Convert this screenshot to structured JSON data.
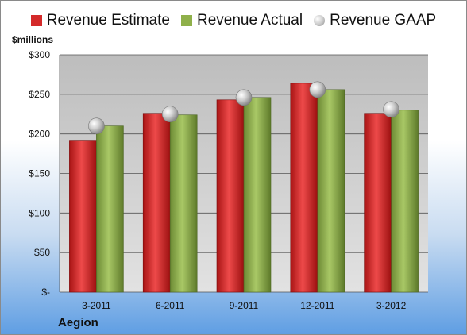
{
  "legend": [
    {
      "label": "Revenue Estimate",
      "color": "#d42a2a",
      "shape": "square"
    },
    {
      "label": "Revenue Actual",
      "color": "#8fb04a",
      "shape": "square"
    },
    {
      "label": "Revenue GAAP",
      "color": "#c8c8c8",
      "shape": "circle"
    }
  ],
  "unit_label": "$millions",
  "company": "Aegion",
  "chart_data": {
    "type": "bar",
    "categories": [
      "3-2011",
      "6-2011",
      "9-2011",
      "12-2011",
      "3-2012"
    ],
    "series": [
      {
        "name": "Revenue Estimate",
        "kind": "bar",
        "color": "#d42a2a",
        "values": [
          192,
          226,
          243,
          264,
          226
        ]
      },
      {
        "name": "Revenue Actual",
        "kind": "bar",
        "color": "#8fb04a",
        "values": [
          210,
          224,
          246,
          256,
          230
        ]
      },
      {
        "name": "Revenue GAAP",
        "kind": "marker",
        "color": "#c8c8c8",
        "values": [
          210,
          225,
          246,
          256,
          231
        ]
      }
    ],
    "ylim": [
      0,
      300
    ],
    "yticks": [
      0,
      50,
      100,
      150,
      200,
      250,
      300
    ],
    "ytick_labels": [
      "$-",
      "$50",
      "$100",
      "$150",
      "$200",
      "$250",
      "$300"
    ],
    "grid": true,
    "legend_position": "top"
  }
}
